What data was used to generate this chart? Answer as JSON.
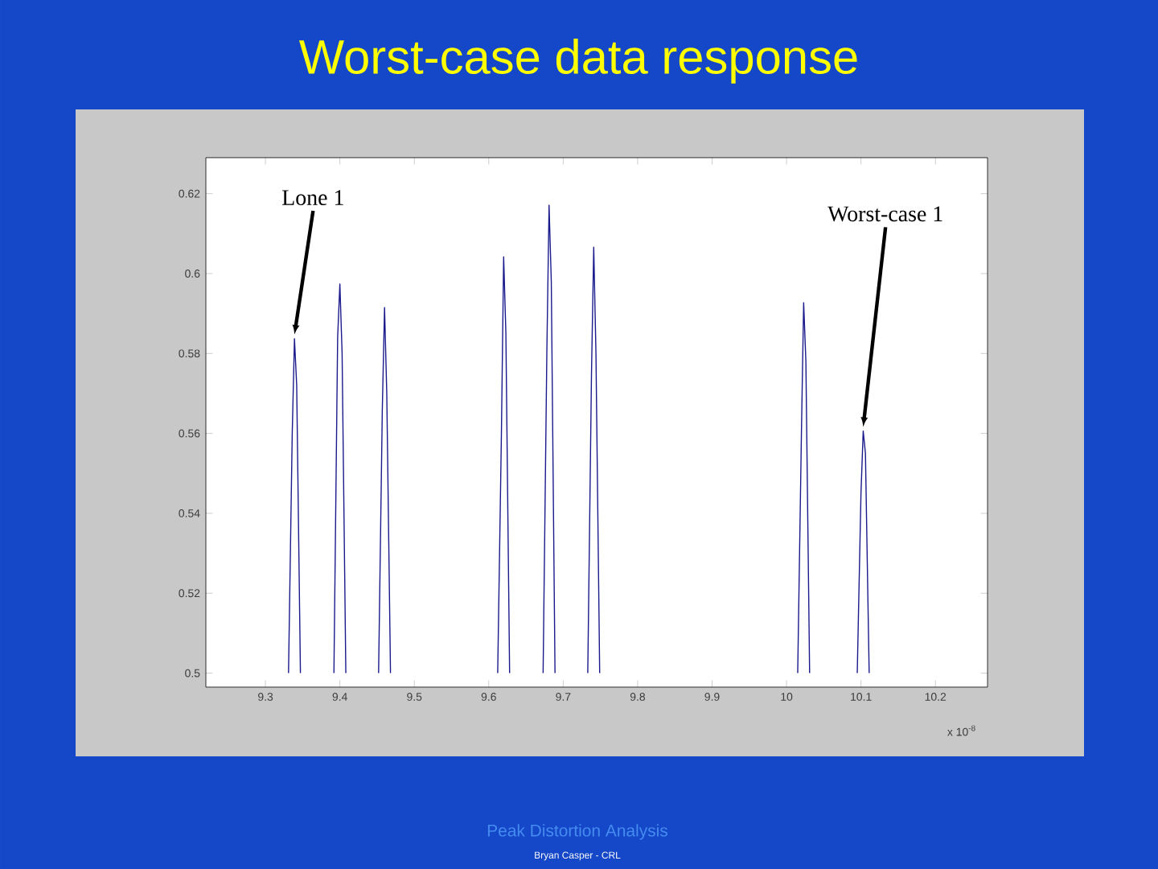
{
  "chart_data": {
    "type": "line",
    "title": "Worst-case data response",
    "xlabel": "x 10$^{-8}$",
    "series": [
      {
        "color": "#1a1a8c",
        "x": [
          9.331,
          9.336,
          9.339,
          9.342,
          9.347
        ],
        "values": [
          0.5,
          0.56,
          0.5837,
          0.572,
          0.5
        ]
      },
      {
        "color": "#1a1a8c",
        "x": [
          9.392,
          9.397,
          9.4,
          9.403,
          9.408
        ],
        "values": [
          0.5,
          0.584,
          0.5974,
          0.58,
          0.5
        ]
      },
      {
        "color": "#1a1a8c",
        "x": [
          9.452,
          9.457,
          9.46,
          9.463,
          9.468
        ],
        "values": [
          0.5,
          0.566,
          0.5915,
          0.57,
          0.5
        ]
      },
      {
        "color": "#1a1a8c",
        "x": [
          9.612,
          9.617,
          9.62,
          9.623,
          9.628
        ],
        "values": [
          0.5,
          0.56,
          0.6042,
          0.585,
          0.5
        ]
      },
      {
        "color": "#1a1a8c",
        "x": [
          9.673,
          9.678,
          9.681,
          9.684,
          9.689
        ],
        "values": [
          0.5,
          0.58,
          0.6171,
          0.598,
          0.5
        ]
      },
      {
        "color": "#1a1a8c",
        "x": [
          9.733,
          9.738,
          9.741,
          9.744,
          9.749
        ],
        "values": [
          0.5,
          0.575,
          0.6066,
          0.58,
          0.5
        ]
      },
      {
        "color": "#1a1a8c",
        "x": [
          10.015,
          10.02,
          10.023,
          10.026,
          10.031
        ],
        "values": [
          0.5,
          0.56,
          0.5927,
          0.578,
          0.5
        ]
      },
      {
        "color": "#1a1a8c",
        "x": [
          10.095,
          10.1,
          10.103,
          10.106,
          10.111
        ],
        "values": [
          0.5,
          0.545,
          0.5606,
          0.555,
          0.5
        ]
      }
    ],
    "marker": "none",
    "line_style": "solid",
    "xlim": [
      9.22,
      10.27
    ],
    "ylim": [
      0.4965,
      0.629
    ],
    "xticks": [
      9.3,
      9.4,
      9.5,
      9.6,
      9.7,
      9.8,
      9.9,
      10,
      10.1,
      10.2
    ],
    "yticks": [
      0.5,
      0.52,
      0.54,
      0.56,
      0.58,
      0.6,
      0.62
    ],
    "annotations": [
      {
        "text": "Lone 1",
        "x": 9.339,
        "y": 0.5837
      },
      {
        "text": "Worst-case 1",
        "x": 10.103,
        "y": 0.5606
      },
      "Peak Distortion Analysis",
      "Bryan Casper - CRL"
    ]
  }
}
